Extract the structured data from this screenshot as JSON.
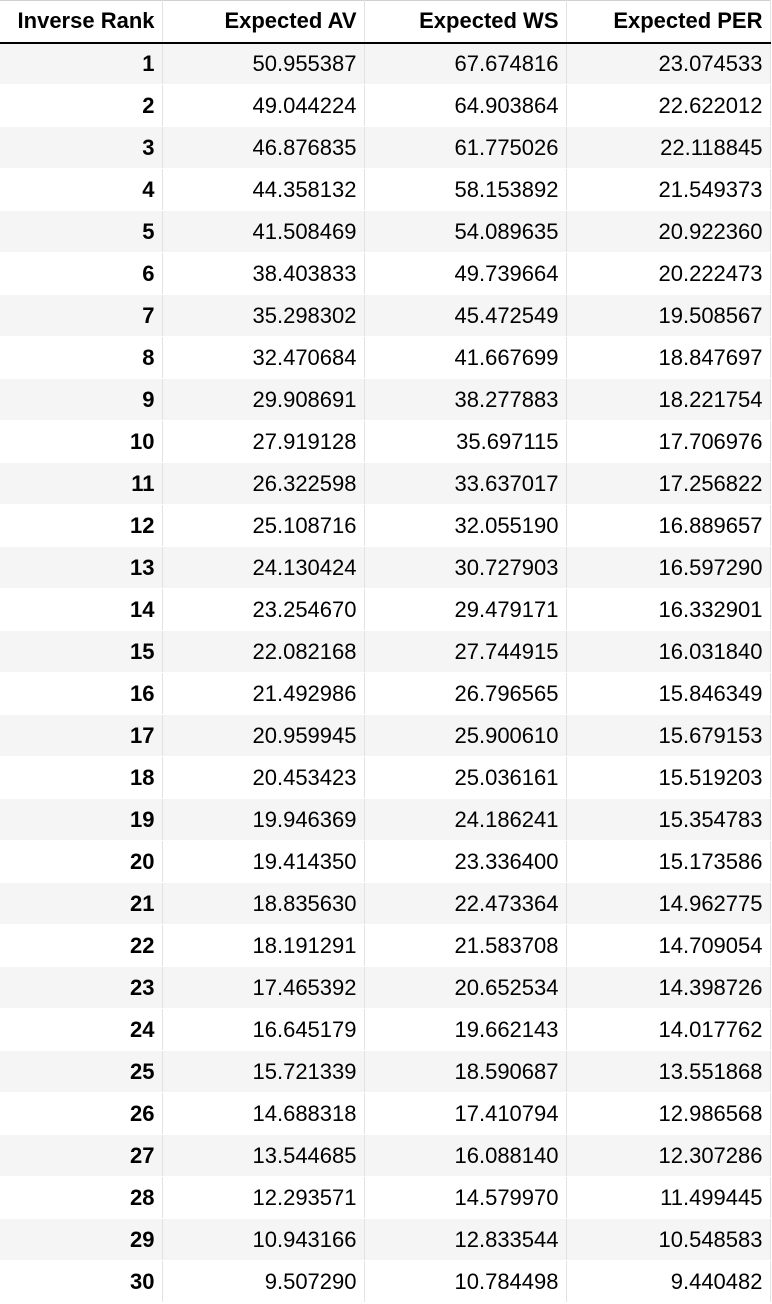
{
  "table": {
    "headers": [
      "Inverse Rank",
      "Expected AV",
      "Expected WS",
      "Expected PER"
    ],
    "rows": [
      [
        "1",
        "50.955387",
        "67.674816",
        "23.074533"
      ],
      [
        "2",
        "49.044224",
        "64.903864",
        "22.622012"
      ],
      [
        "3",
        "46.876835",
        "61.775026",
        "22.118845"
      ],
      [
        "4",
        "44.358132",
        "58.153892",
        "21.549373"
      ],
      [
        "5",
        "41.508469",
        "54.089635",
        "20.922360"
      ],
      [
        "6",
        "38.403833",
        "49.739664",
        "20.222473"
      ],
      [
        "7",
        "35.298302",
        "45.472549",
        "19.508567"
      ],
      [
        "8",
        "32.470684",
        "41.667699",
        "18.847697"
      ],
      [
        "9",
        "29.908691",
        "38.277883",
        "18.221754"
      ],
      [
        "10",
        "27.919128",
        "35.697115",
        "17.706976"
      ],
      [
        "11",
        "26.322598",
        "33.637017",
        "17.256822"
      ],
      [
        "12",
        "25.108716",
        "32.055190",
        "16.889657"
      ],
      [
        "13",
        "24.130424",
        "30.727903",
        "16.597290"
      ],
      [
        "14",
        "23.254670",
        "29.479171",
        "16.332901"
      ],
      [
        "15",
        "22.082168",
        "27.744915",
        "16.031840"
      ],
      [
        "16",
        "21.492986",
        "26.796565",
        "15.846349"
      ],
      [
        "17",
        "20.959945",
        "25.900610",
        "15.679153"
      ],
      [
        "18",
        "20.453423",
        "25.036161",
        "15.519203"
      ],
      [
        "19",
        "19.946369",
        "24.186241",
        "15.354783"
      ],
      [
        "20",
        "19.414350",
        "23.336400",
        "15.173586"
      ],
      [
        "21",
        "18.835630",
        "22.473364",
        "14.962775"
      ],
      [
        "22",
        "18.191291",
        "21.583708",
        "14.709054"
      ],
      [
        "23",
        "17.465392",
        "20.652534",
        "14.398726"
      ],
      [
        "24",
        "16.645179",
        "19.662143",
        "14.017762"
      ],
      [
        "25",
        "15.721339",
        "18.590687",
        "13.551868"
      ],
      [
        "26",
        "14.688318",
        "17.410794",
        "12.986568"
      ],
      [
        "27",
        "13.544685",
        "16.088140",
        "12.307286"
      ],
      [
        "28",
        "12.293571",
        "14.579970",
        "11.499445"
      ],
      [
        "29",
        "10.943166",
        "12.833544",
        "10.548583"
      ],
      [
        "30",
        "9.507290",
        "10.784498",
        "9.440482"
      ]
    ]
  }
}
